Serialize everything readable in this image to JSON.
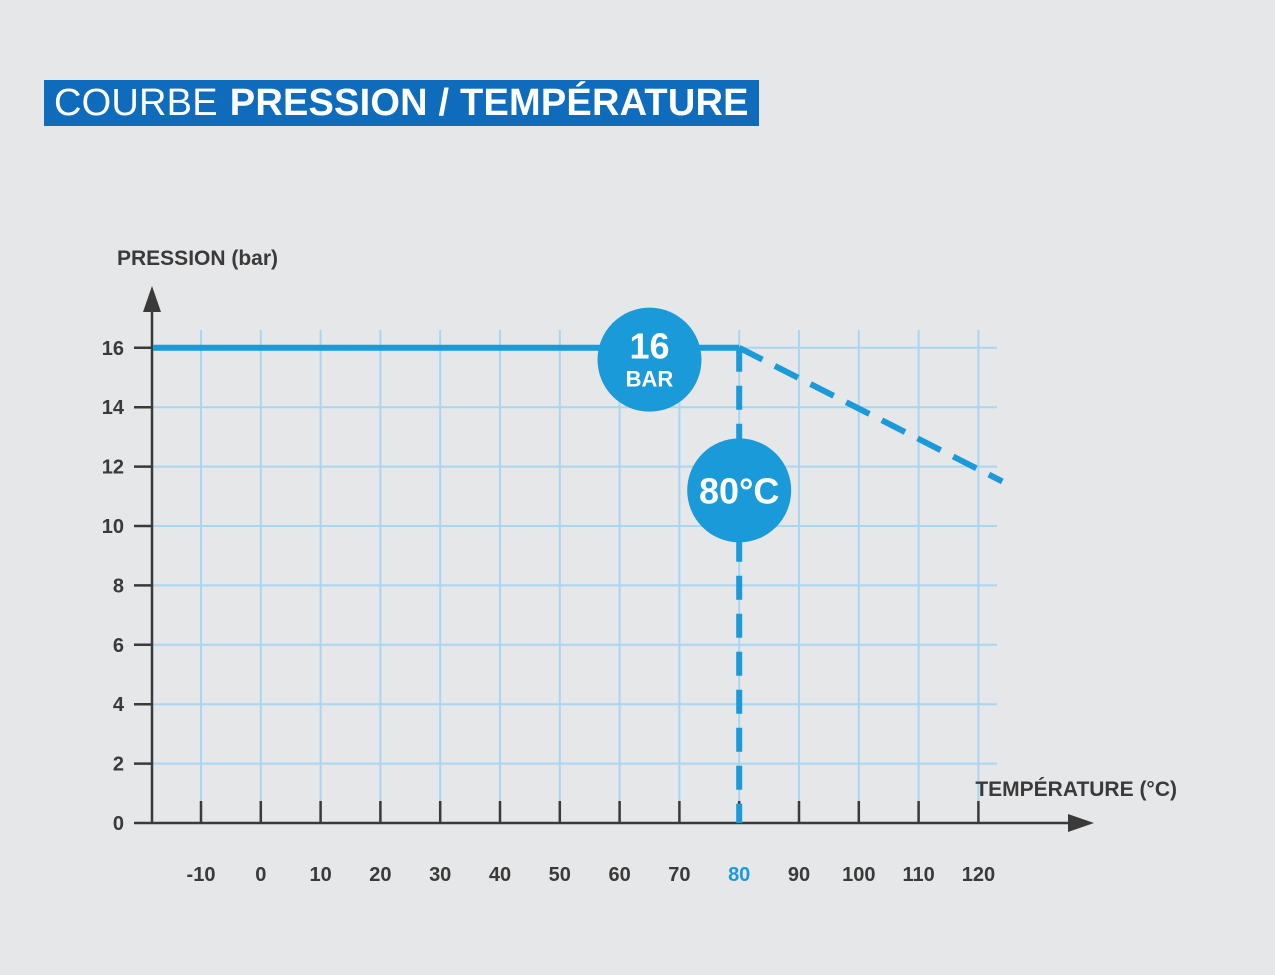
{
  "title": {
    "light": "COURBE",
    "bold": "PRESSION / TEMPÉRATURE"
  },
  "colors": {
    "banner": "#0f6cbd",
    "accent": "#1a9ad9",
    "grid": "#a9d6f0",
    "axis": "#3a3a3a",
    "background": "#e6e7e9"
  },
  "chart_data": {
    "type": "line",
    "ylabel": "PRESSION (bar)",
    "xlabel": "TEMPÉRATURE (°C)",
    "xlim": [
      -18,
      123
    ],
    "ylim": [
      0,
      16.8
    ],
    "x_ticks": [
      -10,
      0,
      10,
      20,
      30,
      40,
      50,
      60,
      70,
      80,
      90,
      100,
      110,
      120
    ],
    "y_ticks": [
      0,
      2,
      4,
      6,
      8,
      10,
      12,
      14,
      16
    ],
    "highlight_x_tick": 80,
    "grid": true,
    "series": [
      {
        "style": "solid",
        "points": [
          [
            -18,
            16
          ],
          [
            80,
            16
          ]
        ]
      },
      {
        "style": "dashed",
        "points": [
          [
            80,
            16
          ],
          [
            124,
            11.5
          ]
        ]
      }
    ],
    "reference_line": {
      "style": "dashed",
      "x": 80,
      "from_y": 0,
      "to_y": 16
    },
    "annotations": [
      {
        "text_big": "16",
        "text_small": "BAR",
        "x": 65,
        "y": 15.6
      },
      {
        "text_big": "80°C",
        "x": 80,
        "y": 11.2
      }
    ]
  }
}
